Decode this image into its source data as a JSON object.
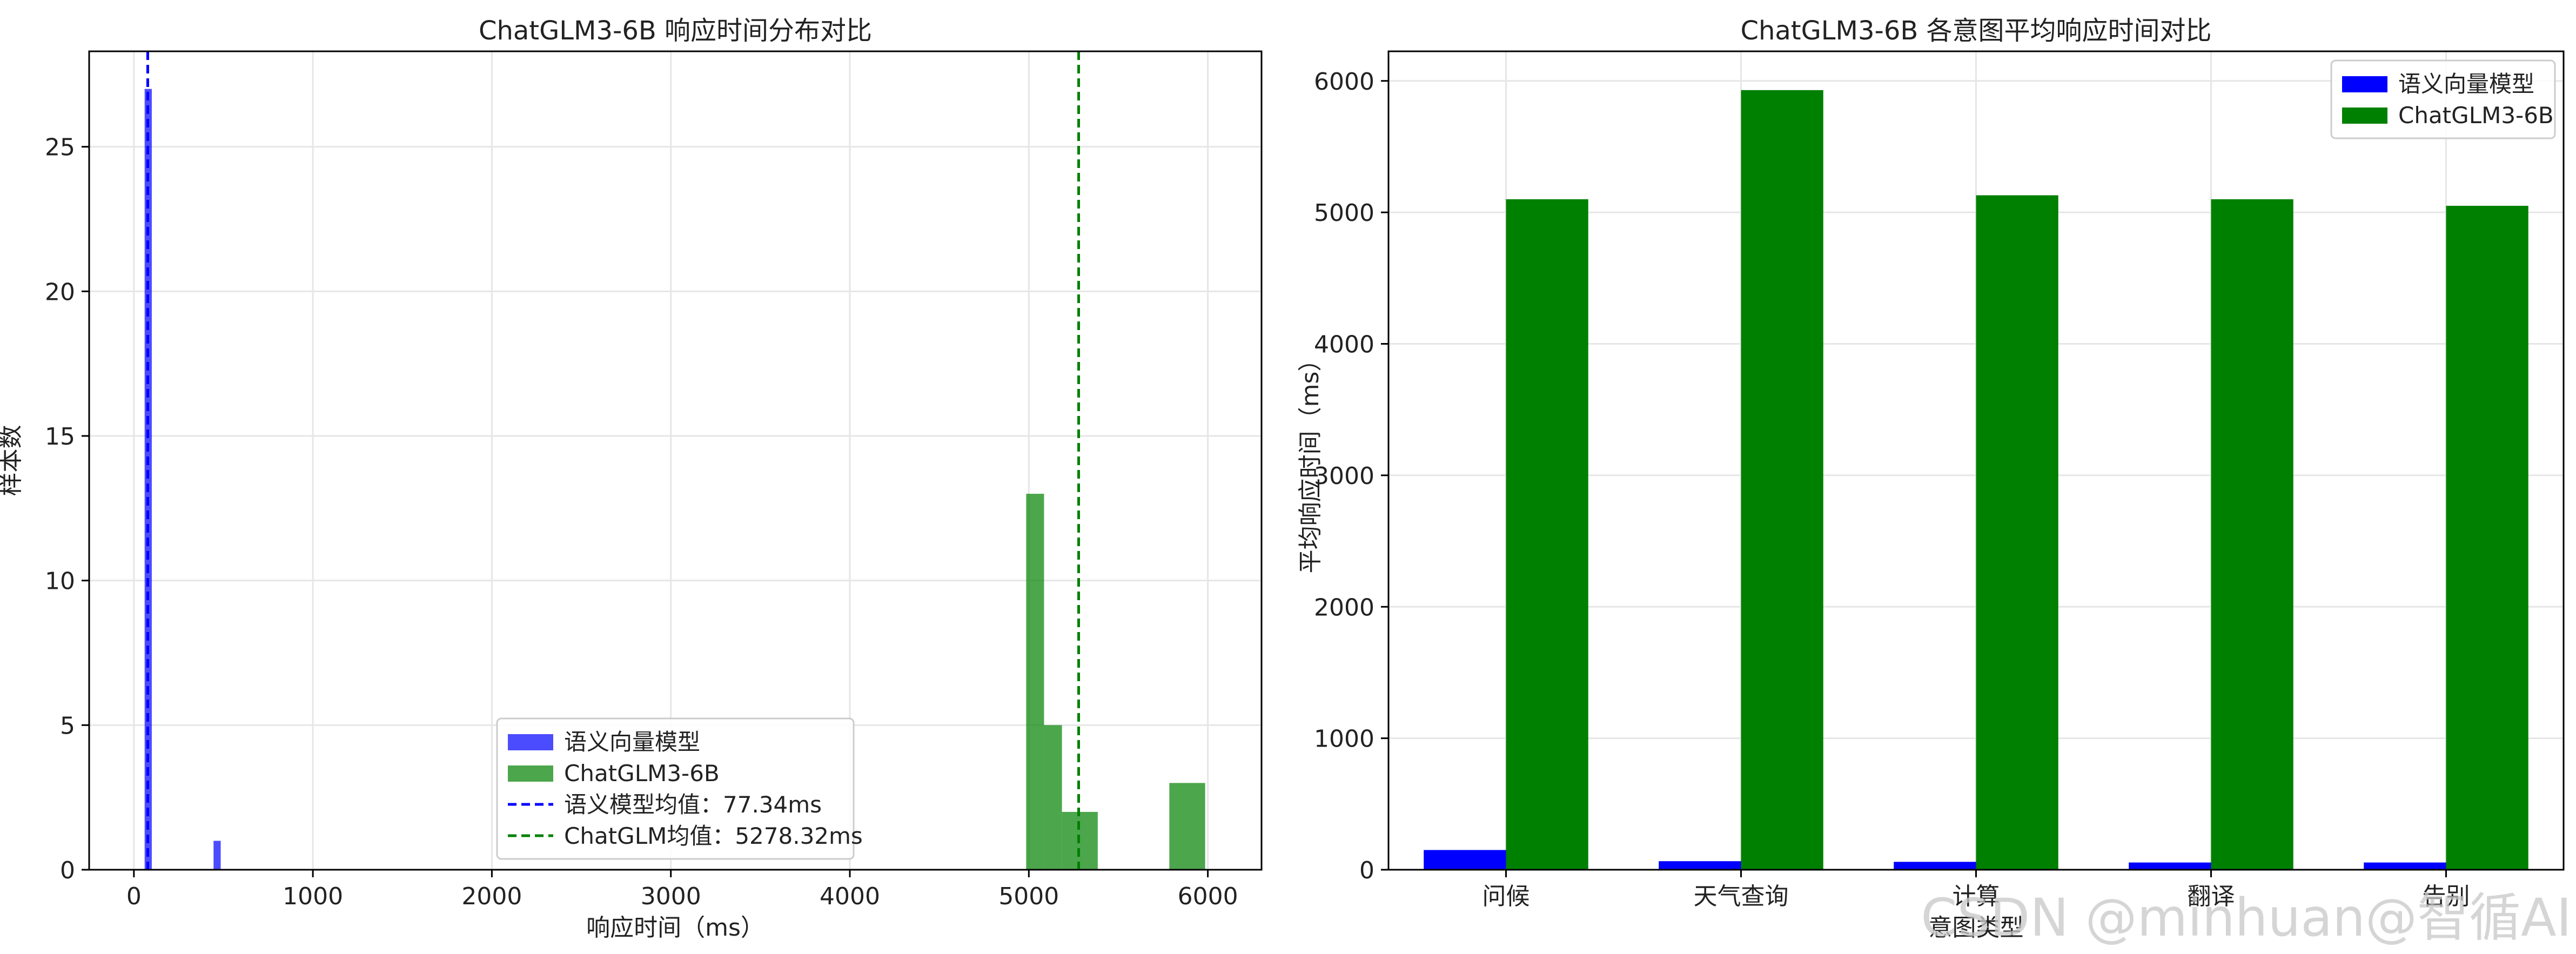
{
  "watermark": "CSDN @minhuan@智循AI",
  "colors": {
    "blue": "#0000ff",
    "green": "#008000",
    "grid": "#e6e6e6",
    "text": "#222222"
  },
  "chart_data": [
    {
      "type": "bar",
      "subtype": "histogram",
      "title": "ChatGLM3-6B 响应时间分布对比",
      "xlabel": "响应时间（ms）",
      "ylabel": "样本数",
      "xlim": [
        -250,
        6300
      ],
      "ylim": [
        0,
        28.3
      ],
      "xticks": [
        0,
        1000,
        2000,
        3000,
        4000,
        5000,
        6000
      ],
      "yticks": [
        0,
        5,
        10,
        15,
        20,
        25
      ],
      "grid": true,
      "legend_position": "lower-center",
      "series": [
        {
          "name": "语义向量模型",
          "color": "#0000ff",
          "opacity": 0.7,
          "bins": [
            {
              "x0": 60,
              "x1": 100,
              "count": 27
            },
            {
              "x0": 445,
              "x1": 485,
              "count": 1
            }
          ]
        },
        {
          "name": "ChatGLM3-6B",
          "color": "#008000",
          "opacity": 0.7,
          "bins": [
            {
              "x0": 4985,
              "x1": 5085,
              "count": 13
            },
            {
              "x0": 5085,
              "x1": 5185,
              "count": 5
            },
            {
              "x0": 5185,
              "x1": 5385,
              "count": 2
            },
            {
              "x0": 5785,
              "x1": 5985,
              "count": 3
            }
          ]
        }
      ],
      "mean_lines": [
        {
          "name": "语义模型均值：77.34ms",
          "value": 77.34,
          "color": "#0000ff"
        },
        {
          "name": "ChatGLM均值：5278.32ms",
          "value": 5278.32,
          "color": "#008000"
        }
      ]
    },
    {
      "type": "bar",
      "title": "ChatGLM3-6B 各意图平均响应时间对比",
      "xlabel": "意图类型",
      "ylabel": "平均响应时间（ms）",
      "categories": [
        "问候",
        "天气查询",
        "计算",
        "翻译",
        "告别"
      ],
      "ylim": [
        0,
        6225
      ],
      "yticks": [
        0,
        1000,
        2000,
        3000,
        4000,
        5000,
        6000
      ],
      "grid": true,
      "legend_position": "top-right",
      "series": [
        {
          "name": "语义向量模型",
          "color": "#0000ff",
          "values": [
            150,
            65,
            60,
            55,
            55
          ]
        },
        {
          "name": "ChatGLM3-6B",
          "color": "#008000",
          "values": [
            5100,
            5930,
            5130,
            5100,
            5050
          ]
        }
      ]
    }
  ]
}
